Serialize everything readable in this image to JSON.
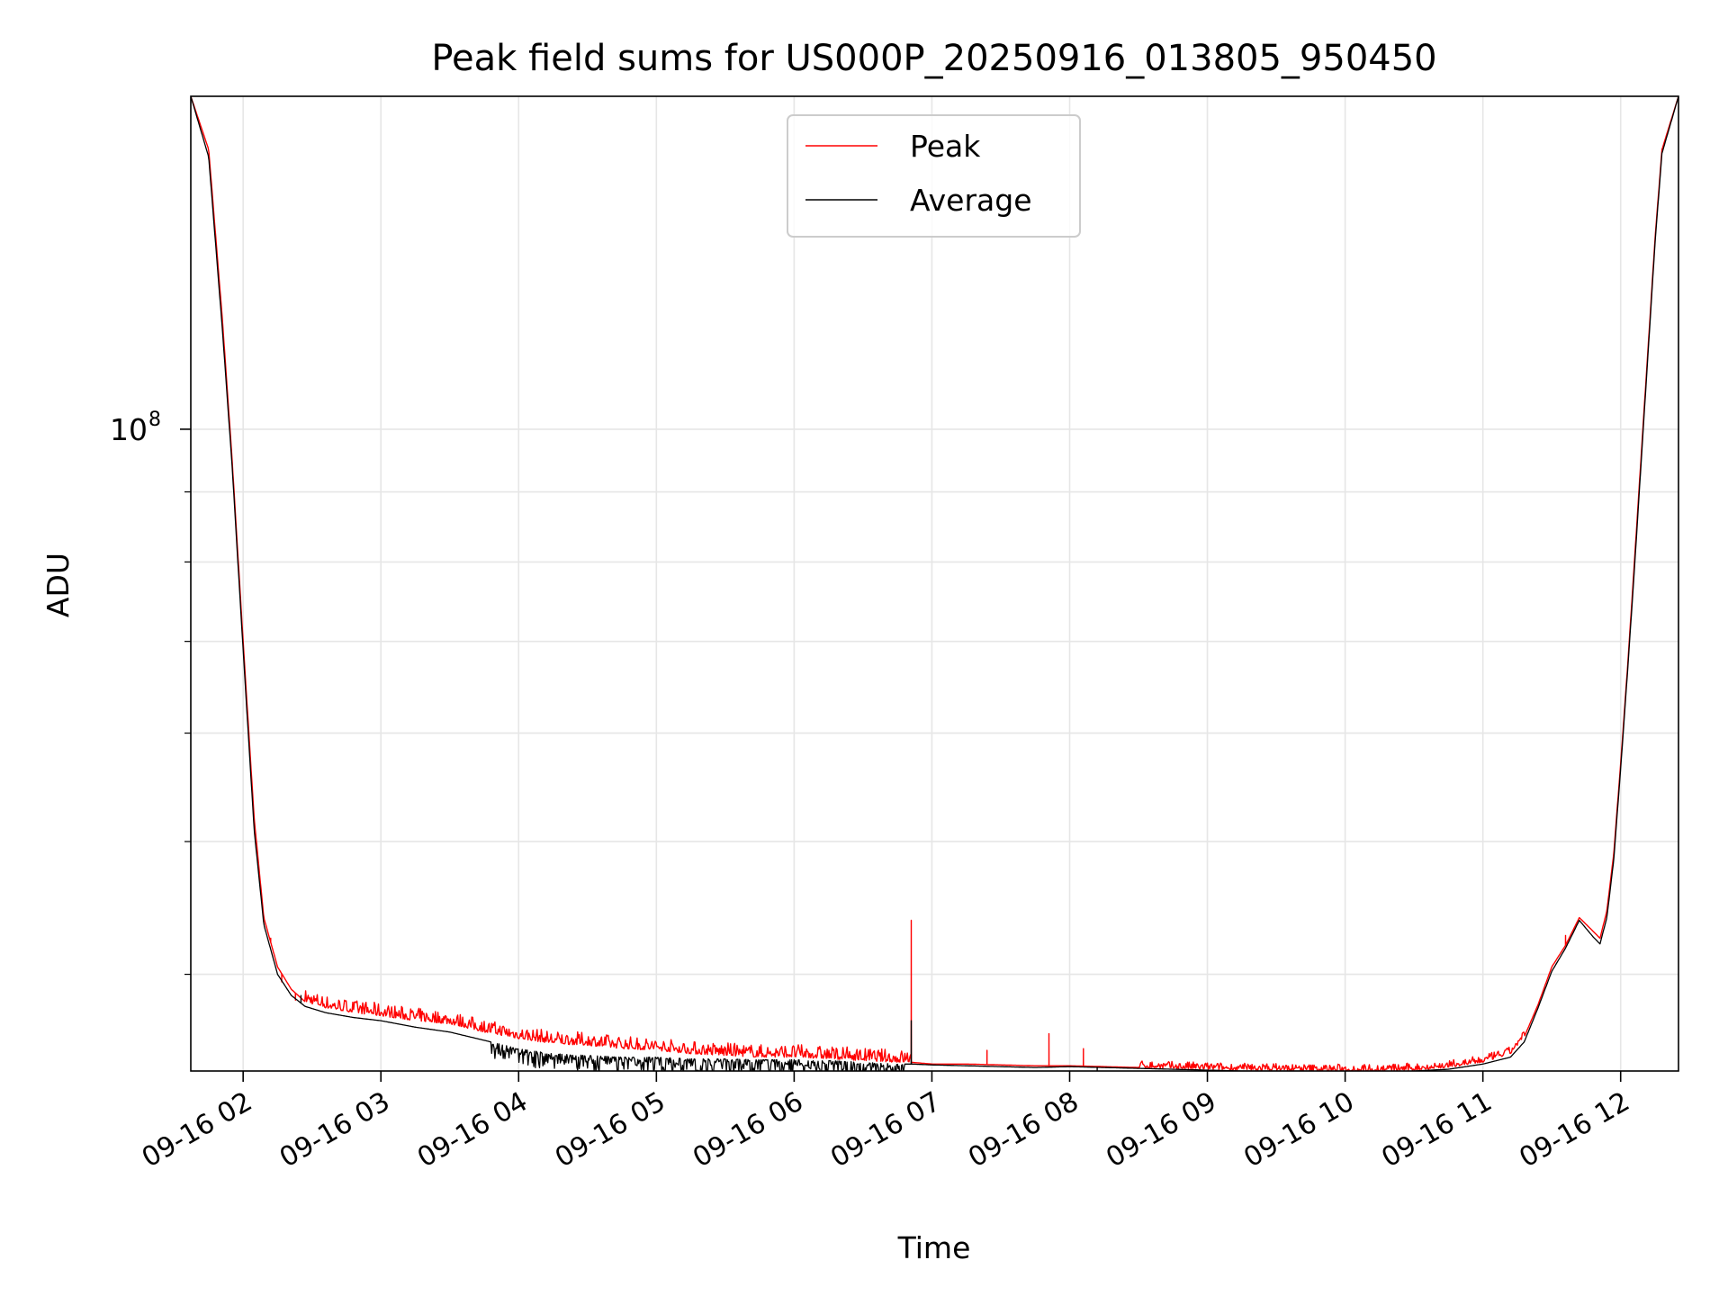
{
  "chart_data": {
    "type": "line",
    "title": "Peak field sums for US000P_20250916_013805_950450",
    "xlabel": "Time",
    "ylabel": "ADU",
    "yscale": "log",
    "grid": true,
    "x_unit": "hours since 09-16 00:00",
    "xlim": [
      1.62,
      12.42
    ],
    "ylim": [
      34000000,
      175000000
    ],
    "x_ticks": [
      {
        "value": 2,
        "label": "09-16 02"
      },
      {
        "value": 3,
        "label": "09-16 03"
      },
      {
        "value": 4,
        "label": "09-16 04"
      },
      {
        "value": 5,
        "label": "09-16 05"
      },
      {
        "value": 6,
        "label": "09-16 06"
      },
      {
        "value": 7,
        "label": "09-16 07"
      },
      {
        "value": 8,
        "label": "09-16 08"
      },
      {
        "value": 9,
        "label": "09-16 09"
      },
      {
        "value": 10,
        "label": "09-16 10"
      },
      {
        "value": 11,
        "label": "09-16 11"
      },
      {
        "value": 12,
        "label": "09-16 12"
      }
    ],
    "y_major_ticks": [
      {
        "value": 100000000,
        "base": "10",
        "exp": "8"
      }
    ],
    "y_minor_ticks": [
      40000000,
      50000000,
      60000000,
      70000000,
      80000000,
      90000000,
      200000000
    ],
    "legend": {
      "position": "upper center",
      "entries": [
        "Peak",
        "Average"
      ]
    },
    "series": [
      {
        "name": "Peak",
        "color": "#ff0000",
        "x": [
          1.62,
          1.75,
          1.85,
          1.92,
          2.0,
          2.08,
          2.15,
          2.25,
          2.35,
          2.45,
          2.6,
          2.8,
          3.0,
          3.25,
          3.5,
          3.75,
          4.0,
          4.25,
          4.5,
          4.75,
          5.0,
          5.25,
          5.5,
          5.75,
          6.0,
          6.25,
          6.5,
          6.75,
          6.85,
          7.0,
          7.25,
          7.5,
          7.75,
          8.0,
          8.25,
          8.5,
          8.75,
          9.0,
          9.25,
          9.5,
          9.75,
          10.0,
          10.25,
          10.5,
          10.75,
          11.0,
          11.2,
          11.3,
          11.4,
          11.5,
          11.6,
          11.7,
          11.8,
          11.85,
          11.9,
          11.95,
          12.0,
          12.05,
          12.1,
          12.15,
          12.2,
          12.25,
          12.3,
          12.42
        ],
        "values": [
          175000000,
          160000000,
          120000000,
          95000000,
          70000000,
          52000000,
          44000000,
          40500000,
          39000000,
          38200000,
          37800000,
          37500000,
          37300000,
          37000000,
          36800000,
          36300000,
          35900000,
          35600000,
          35500000,
          35300000,
          35200000,
          35000000,
          34900000,
          34800000,
          34800000,
          34700000,
          34600000,
          34500000,
          34500000,
          34400000,
          34400000,
          34350000,
          34300000,
          34300000,
          34250000,
          34200000,
          34150000,
          34100000,
          34050000,
          34050000,
          34000000,
          34000000,
          34000000,
          34050000,
          34200000,
          34500000,
          35000000,
          36000000,
          38000000,
          40500000,
          42000000,
          44000000,
          43000000,
          42500000,
          44500000,
          49000000,
          57000000,
          67000000,
          80000000,
          96000000,
          115000000,
          138000000,
          160000000,
          175000000
        ],
        "spikes": [
          {
            "x": 6.85,
            "value": 43800000
          },
          {
            "x": 2.2,
            "value": 42500000
          },
          {
            "x": 2.28,
            "value": 39500000
          },
          {
            "x": 2.38,
            "value": 38300000
          },
          {
            "x": 7.4,
            "value": 35200000
          },
          {
            "x": 7.85,
            "value": 36200000
          },
          {
            "x": 8.1,
            "value": 35300000
          },
          {
            "x": 11.6,
            "value": 42700000
          }
        ],
        "noise": [
          {
            "from": 2.45,
            "to": 6.85,
            "amplitude": 0.022
          },
          {
            "from": 8.5,
            "to": 11.3,
            "amplitude": 0.012
          }
        ]
      },
      {
        "name": "Average",
        "color": "#000000",
        "x": [
          1.62,
          1.75,
          1.85,
          1.92,
          2.0,
          2.08,
          2.15,
          2.25,
          2.35,
          2.45,
          2.6,
          2.8,
          3.0,
          3.25,
          3.5,
          3.75,
          4.0,
          4.25,
          4.5,
          4.75,
          5.0,
          5.25,
          5.5,
          5.75,
          6.0,
          6.25,
          6.5,
          6.75,
          6.85,
          7.0,
          7.25,
          7.5,
          7.75,
          8.0,
          8.25,
          8.5,
          8.75,
          9.0,
          9.25,
          9.5,
          9.75,
          10.0,
          10.25,
          10.5,
          10.75,
          11.0,
          11.2,
          11.3,
          11.4,
          11.5,
          11.6,
          11.7,
          11.8,
          11.85,
          11.9,
          11.95,
          12.0,
          12.05,
          12.1,
          12.15,
          12.2,
          12.25,
          12.3,
          12.42
        ],
        "values": [
          175000000,
          158000000,
          118000000,
          94000000,
          69000000,
          51000000,
          43500000,
          40000000,
          38600000,
          37900000,
          37500000,
          37200000,
          37000000,
          36600000,
          36300000,
          35800000,
          35300000,
          35000000,
          34900000,
          34800000,
          34800000,
          34700000,
          34700000,
          34650000,
          34650000,
          34600000,
          34500000,
          34400000,
          34400000,
          34350000,
          34300000,
          34250000,
          34200000,
          34250000,
          34200000,
          34150000,
          34100000,
          34050000,
          34000000,
          34000000,
          34000000,
          33950000,
          33950000,
          34000000,
          34100000,
          34400000,
          34800000,
          35700000,
          37800000,
          40200000,
          41800000,
          43800000,
          42600000,
          42100000,
          44000000,
          48500000,
          56500000,
          66500000,
          79000000,
          95000000,
          114000000,
          137000000,
          159000000,
          175000000
        ],
        "dips": [
          {
            "x": 2.42,
            "value": 38600000
          },
          {
            "x": 4.3,
            "value": 34700000
          },
          {
            "x": 5.1,
            "value": 34500000
          },
          {
            "x": 5.65,
            "value": 34400000
          },
          {
            "x": 6.85,
            "value": 37000000
          },
          {
            "x": 8.2,
            "value": 34000000
          }
        ],
        "noise": [
          {
            "from": 3.8,
            "to": 6.8,
            "amplitude": 0.028
          }
        ]
      }
    ]
  }
}
